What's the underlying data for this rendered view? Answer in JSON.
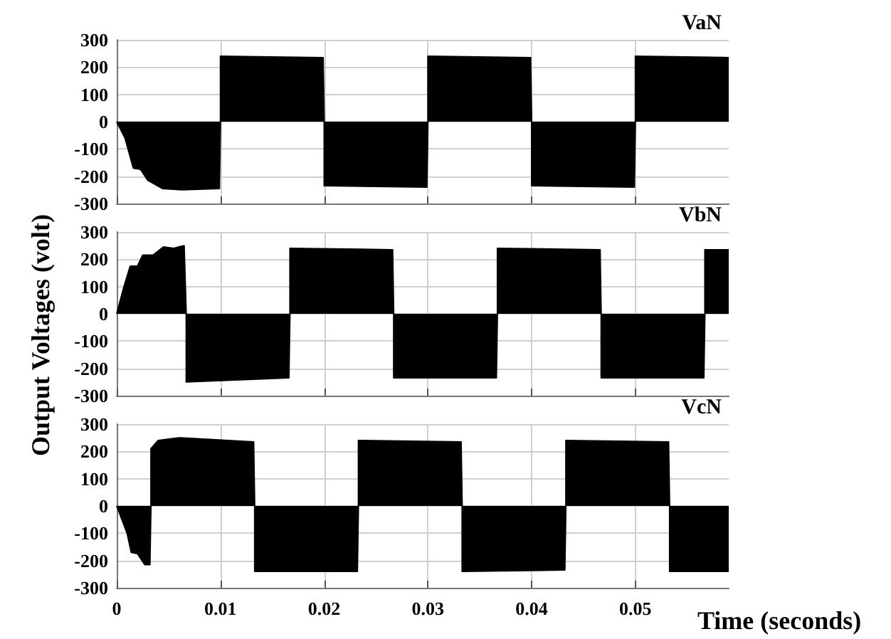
{
  "chart_data": [
    {
      "type": "area",
      "title": "VaN",
      "ylabel": "Output Voltages (volt)",
      "xlim": [
        0,
        0.059
      ],
      "xticks": [
        0,
        0.01,
        0.02,
        0.03,
        0.04,
        0.05
      ],
      "ylim": [
        -300,
        300
      ],
      "yticks": [
        -300,
        -200,
        -100,
        0,
        100,
        200,
        300
      ],
      "grid": true,
      "tick_labels": "y",
      "series": [
        {
          "color": "#000000",
          "x": [
            0,
            0.0008,
            0.0016,
            0.0023,
            0.003,
            0.0044,
            0.0063,
            0.0099,
            0.01,
            0.01,
            0.0199,
            0.02,
            0.02,
            0.0299,
            0.03,
            0.03,
            0.0399,
            0.04,
            0.04,
            0.0499,
            0.05,
            0.05,
            0.059
          ],
          "values": [
            0,
            -60,
            -170,
            -175,
            -215,
            -245,
            -250,
            -245,
            0,
            240,
            235,
            0,
            -235,
            -240,
            0,
            240,
            235,
            0,
            -235,
            -240,
            0,
            240,
            235
          ]
        }
      ]
    },
    {
      "type": "area",
      "title": "VbN",
      "xlim": [
        0,
        0.059
      ],
      "xticks": [
        0,
        0.01,
        0.02,
        0.03,
        0.04,
        0.05
      ],
      "ylim": [
        -300,
        300
      ],
      "yticks": [
        -300,
        -200,
        -100,
        0,
        100,
        200,
        300
      ],
      "grid": true,
      "tick_labels": "y",
      "series": [
        {
          "color": "#000000",
          "x": [
            0,
            0.0007,
            0.0013,
            0.002,
            0.0025,
            0.0035,
            0.0045,
            0.0055,
            0.0065,
            0.0067,
            0.0067,
            0.0166,
            0.0167,
            0.0167,
            0.0266,
            0.0267,
            0.0267,
            0.0366,
            0.0367,
            0.0367,
            0.0466,
            0.0467,
            0.0467,
            0.0566,
            0.0567,
            0.0567,
            0.059
          ],
          "values": [
            0,
            100,
            175,
            175,
            215,
            215,
            245,
            240,
            250,
            0,
            -250,
            -235,
            0,
            240,
            235,
            0,
            -235,
            -235,
            0,
            240,
            235,
            0,
            -235,
            -235,
            0,
            235,
            235
          ]
        }
      ]
    },
    {
      "type": "area",
      "title": "VcN",
      "xlabel": "Time (seconds)",
      "xlim": [
        0,
        0.059
      ],
      "xticks": [
        0,
        0.01,
        0.02,
        0.03,
        0.04,
        0.05
      ],
      "ylim": [
        -300,
        300
      ],
      "yticks": [
        -300,
        -200,
        -100,
        0,
        100,
        200,
        300
      ],
      "grid": true,
      "series": [
        {
          "color": "#000000",
          "x": [
            0,
            0.001,
            0.0014,
            0.002,
            0.0027,
            0.0032,
            0.0033,
            0.0033,
            0.004,
            0.006,
            0.0132,
            0.0133,
            0.0133,
            0.0232,
            0.0233,
            0.0233,
            0.0332,
            0.0333,
            0.0333,
            0.0432,
            0.0433,
            0.0433,
            0.0532,
            0.0533,
            0.0533,
            0.059
          ],
          "values": [
            0,
            -100,
            -170,
            -175,
            -215,
            -215,
            0,
            210,
            240,
            250,
            235,
            0,
            -240,
            -240,
            0,
            240,
            235,
            0,
            -240,
            -235,
            0,
            240,
            235,
            0,
            -240,
            -240
          ]
        }
      ]
    }
  ]
}
